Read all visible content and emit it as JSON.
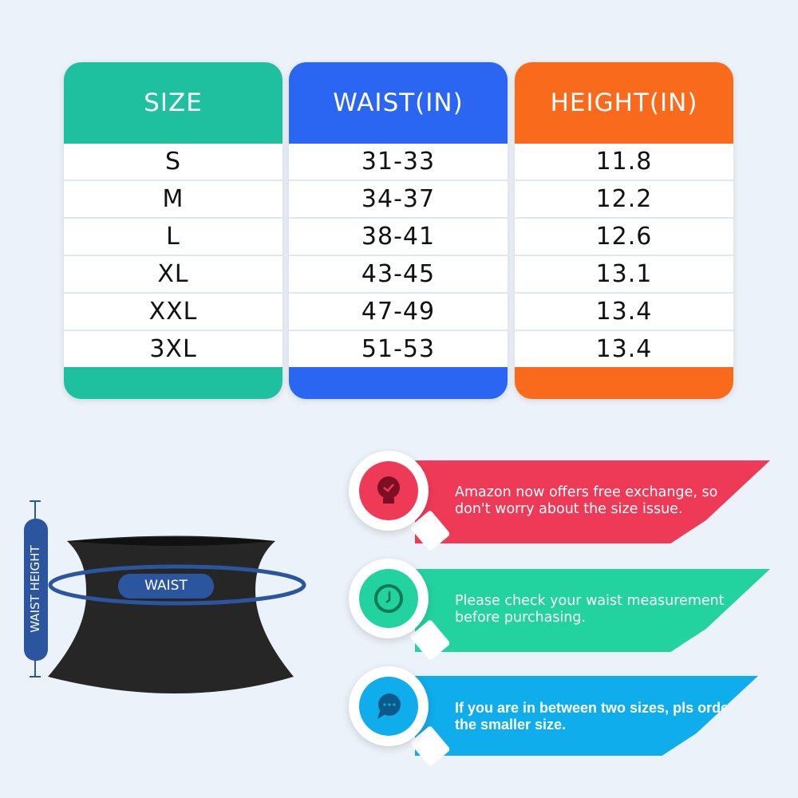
{
  "size_table": {
    "headers": [
      "SIZE",
      "WAIST(IN)",
      "HEIGHT(IN)"
    ],
    "header_colors": [
      "#1ec0a0",
      "#2a66f2",
      "#fa6a1c"
    ],
    "rows": [
      [
        "S",
        "31-33",
        "11.8"
      ],
      [
        "M",
        "34-37",
        "12.2"
      ],
      [
        "L",
        "38-41",
        "12.6"
      ],
      [
        "XL",
        "43-45",
        "13.1"
      ],
      [
        "XXL",
        "47-49",
        "13.4"
      ],
      [
        "3XL",
        "51-53",
        "13.4"
      ]
    ]
  },
  "diagram": {
    "waist_label": "WAIST",
    "height_label": "WAIST HEIGHT",
    "accent": "#2c55a0"
  },
  "tips": [
    {
      "icon": "lightbulb-check-icon",
      "color": "#ef3a57",
      "text": "Amazon now offers free exchange, so don't worry about the size issue."
    },
    {
      "icon": "clock-icon",
      "color": "#22d3a0",
      "text": "Please check your waist measurement before purchasing."
    },
    {
      "icon": "chat-bubble-icon",
      "color": "#0fadeb",
      "text": "If you are in between two sizes, pls order the smaller size."
    }
  ]
}
